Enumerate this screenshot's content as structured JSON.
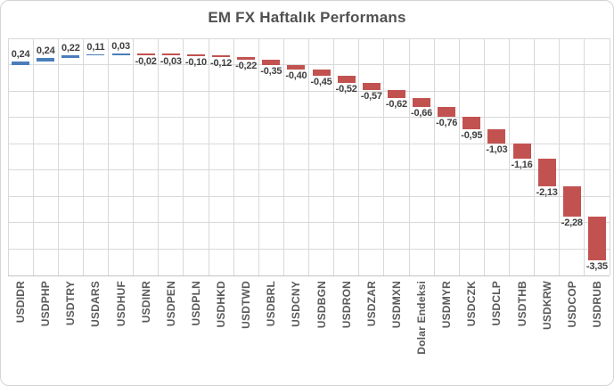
{
  "chart_data": {
    "type": "bar",
    "subtype": "waterfall-cumulative",
    "title": "EM FX Haftalık Performans",
    "categories": [
      "USDIDR",
      "USDPHP",
      "USDTRY",
      "USDARS",
      "USDHUF",
      "USDINR",
      "USDPEN",
      "USDPLN",
      "USDHKD",
      "USDTWD",
      "USDBRL",
      "USDCNY",
      "USDBGN",
      "USDRON",
      "USDZAR",
      "USDMXN",
      "Dolar Endeksi",
      "USDMYR",
      "USDCZK",
      "USDCLP",
      "USDTHB",
      "USDKRW",
      "USDCOP",
      "USDRUB"
    ],
    "values": [
      0.24,
      0.24,
      0.22,
      0.11,
      0.03,
      -0.02,
      -0.03,
      -0.1,
      -0.12,
      -0.22,
      -0.35,
      -0.4,
      -0.45,
      -0.52,
      -0.57,
      -0.62,
      -0.66,
      -0.76,
      -0.95,
      -1.03,
      -1.16,
      -2.13,
      -2.28,
      -3.35
    ],
    "value_labels": [
      "0,24",
      "0,24",
      "0,22",
      "0,11",
      "0,03",
      "-0,02",
      "-0,03",
      "-0,10",
      "-0,12",
      "-0,22",
      "-0,35",
      "-0,40",
      "-0,45",
      "-0,52",
      "-0,57",
      "-0,62",
      "-0,66",
      "-0,76",
      "-0,95",
      "-1,03",
      "-1,16",
      "-2,13",
      "-2,28",
      "-3,35"
    ],
    "xlabel": "",
    "ylabel": "",
    "ylim": [
      -16,
      2
    ],
    "gridline_step": 2,
    "grid": "both",
    "legend": "none",
    "increase_color": "#4a7ebb",
    "decrease_color": "#c25250",
    "gridline_color": "#d9d9d9",
    "title_color": "#515151",
    "label_color": "#3f3f3f",
    "axis_label_color": "#595959"
  }
}
